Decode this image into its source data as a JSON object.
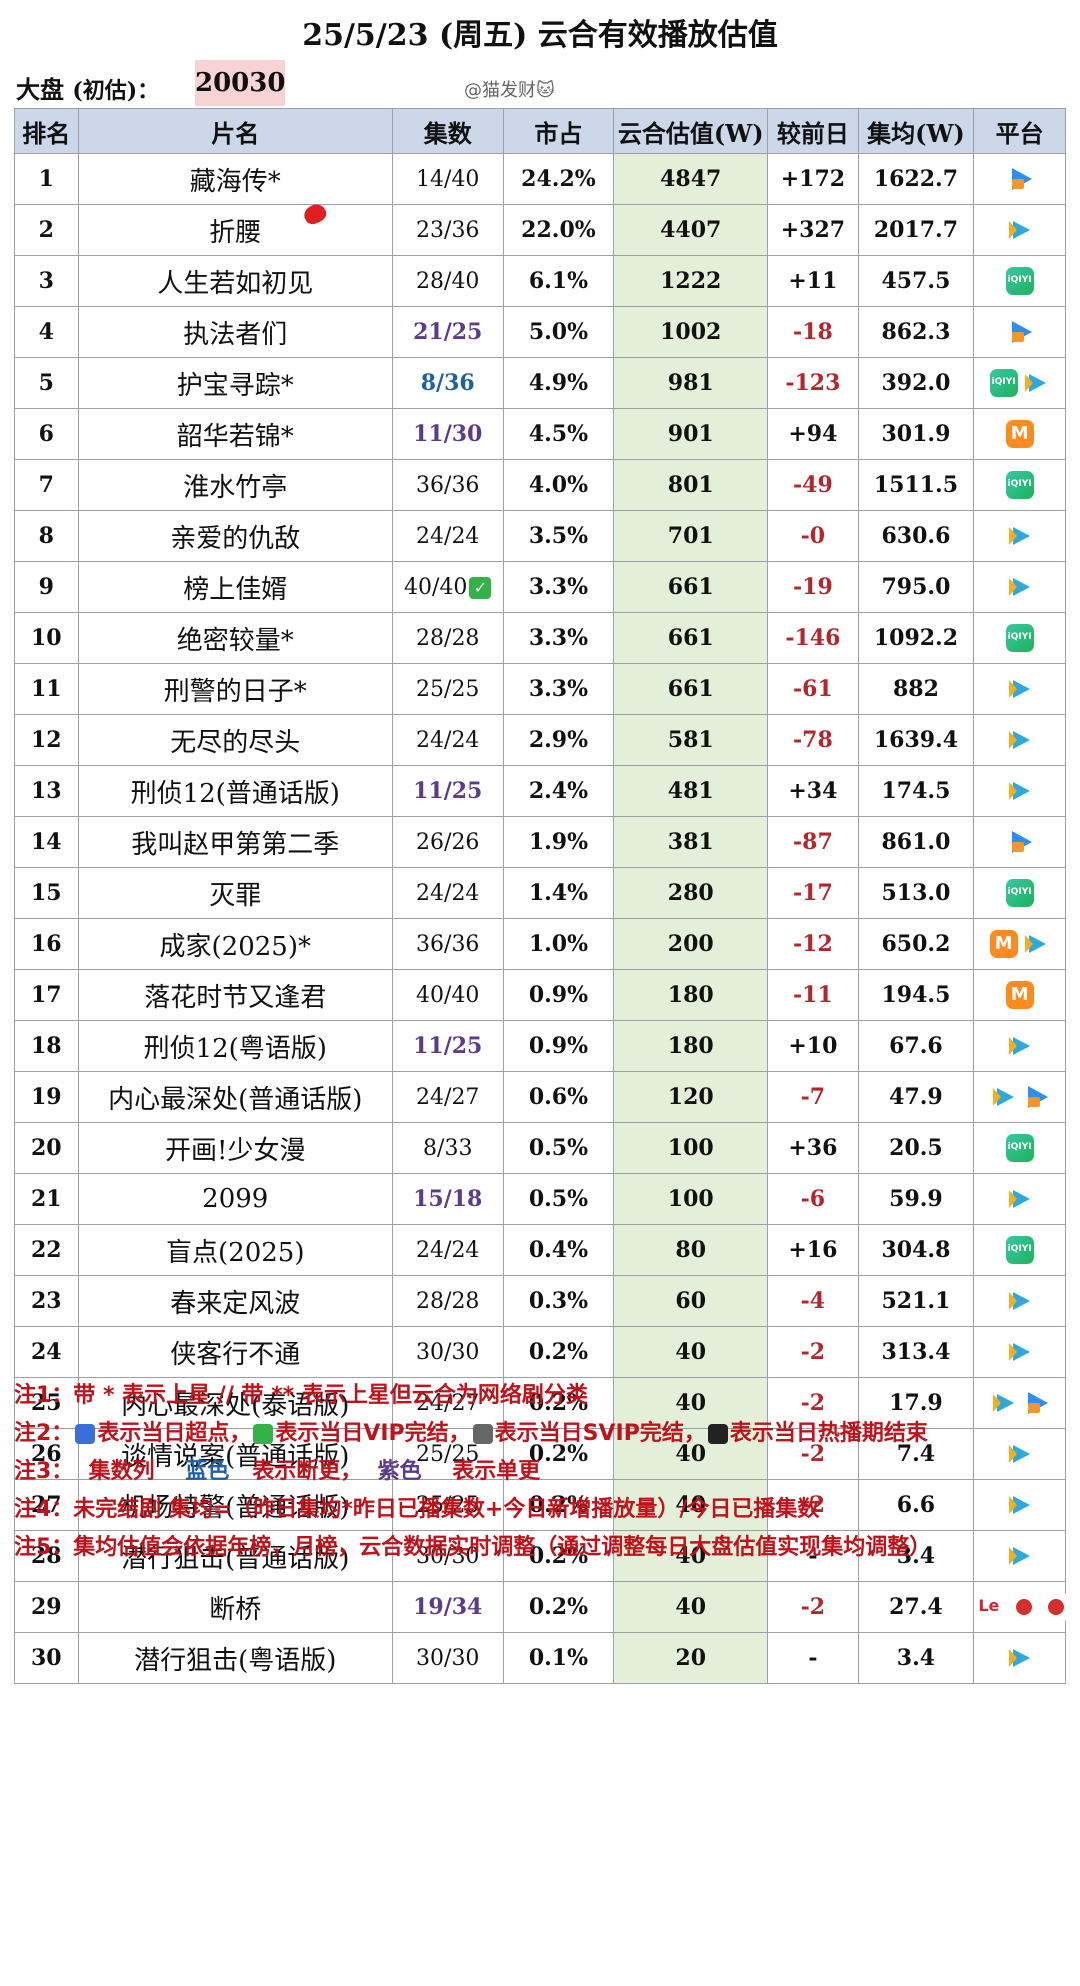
{
  "title": "25/5/23 (周五) 云合有效播放估值",
  "market": {
    "label_main": "大盘",
    "label_paren": "(初估)：",
    "value": "20030"
  },
  "watermark": "@猫发财🐱",
  "headers": [
    "排名",
    "片名",
    "集数",
    "市占",
    "云合估值(W)",
    "较前日",
    "集均(W)",
    "平台"
  ],
  "rows": [
    {
      "rank": "1",
      "name": "藏海传*",
      "eps": "14/40",
      "eps_style": "normal",
      "share": "24.2%",
      "value": "4847",
      "change": "+172",
      "avg": "1622.7",
      "platforms": [
        "youku"
      ]
    },
    {
      "rank": "2",
      "name": "折腰",
      "eps": "23/36",
      "eps_style": "normal",
      "share": "22.0%",
      "value": "4407",
      "change": "+327",
      "avg": "2017.7",
      "platforms": [
        "tencent"
      ]
    },
    {
      "rank": "3",
      "name": "人生若如初见",
      "eps": "28/40",
      "eps_style": "normal",
      "share": "6.1%",
      "value": "1222",
      "change": "+11",
      "avg": "457.5",
      "platforms": [
        "iqiyi"
      ]
    },
    {
      "rank": "4",
      "name": "执法者们",
      "eps": "21/25",
      "eps_style": "purple",
      "share": "5.0%",
      "value": "1002",
      "change": "-18",
      "avg": "862.3",
      "platforms": [
        "youku"
      ]
    },
    {
      "rank": "5",
      "name": "护宝寻踪*",
      "eps": "8/36",
      "eps_style": "blue",
      "share": "4.9%",
      "value": "981",
      "change": "-123",
      "avg": "392.0",
      "platforms": [
        "iqiyi",
        "tencent"
      ]
    },
    {
      "rank": "6",
      "name": "韶华若锦*",
      "eps": "11/30",
      "eps_style": "purple",
      "share": "4.5%",
      "value": "901",
      "change": "+94",
      "avg": "301.9",
      "platforms": [
        "mango"
      ]
    },
    {
      "rank": "7",
      "name": "淮水竹亭",
      "eps": "36/36",
      "eps_style": "normal",
      "share": "4.0%",
      "value": "801",
      "change": "-49",
      "avg": "1511.5",
      "platforms": [
        "iqiyi"
      ]
    },
    {
      "rank": "8",
      "name": "亲爱的仇敌",
      "eps": "24/24",
      "eps_style": "normal",
      "share": "3.5%",
      "value": "701",
      "change": "-0",
      "avg": "630.6",
      "platforms": [
        "tencent"
      ]
    },
    {
      "rank": "9",
      "name": "榜上佳婿",
      "eps": "40/40",
      "eps_style": "normal",
      "share": "3.3%",
      "value": "661",
      "change": "-19",
      "avg": "795.0",
      "platforms": [
        "tencent"
      ],
      "check": true
    },
    {
      "rank": "10",
      "name": "绝密较量*",
      "eps": "28/28",
      "eps_style": "normal",
      "share": "3.3%",
      "value": "661",
      "change": "-146",
      "avg": "1092.2",
      "platforms": [
        "iqiyi"
      ]
    },
    {
      "rank": "11",
      "name": "刑警的日子*",
      "eps": "25/25",
      "eps_style": "normal",
      "share": "3.3%",
      "value": "661",
      "change": "-61",
      "avg": "882",
      "platforms": [
        "tencent"
      ]
    },
    {
      "rank": "12",
      "name": "无尽的尽头",
      "eps": "24/24",
      "eps_style": "normal",
      "share": "2.9%",
      "value": "581",
      "change": "-78",
      "avg": "1639.4",
      "platforms": [
        "tencent"
      ]
    },
    {
      "rank": "13",
      "name": "刑侦12(普通话版)",
      "eps": "11/25",
      "eps_style": "purple",
      "share": "2.4%",
      "value": "481",
      "change": "+34",
      "avg": "174.5",
      "platforms": [
        "tencent"
      ]
    },
    {
      "rank": "14",
      "name": "我叫赵甲第第二季",
      "eps": "26/26",
      "eps_style": "normal",
      "share": "1.9%",
      "value": "381",
      "change": "-87",
      "avg": "861.0",
      "platforms": [
        "youku"
      ]
    },
    {
      "rank": "15",
      "name": "灭罪",
      "eps": "24/24",
      "eps_style": "normal",
      "share": "1.4%",
      "value": "280",
      "change": "-17",
      "avg": "513.0",
      "platforms": [
        "iqiyi"
      ]
    },
    {
      "rank": "16",
      "name": "成家(2025)*",
      "eps": "36/36",
      "eps_style": "normal",
      "share": "1.0%",
      "value": "200",
      "change": "-12",
      "avg": "650.2",
      "platforms": [
        "mango",
        "tencent"
      ]
    },
    {
      "rank": "17",
      "name": "落花时节又逢君",
      "eps": "40/40",
      "eps_style": "normal",
      "share": "0.9%",
      "value": "180",
      "change": "-11",
      "avg": "194.5",
      "platforms": [
        "mango"
      ]
    },
    {
      "rank": "18",
      "name": "刑侦12(粤语版)",
      "eps": "11/25",
      "eps_style": "purple",
      "share": "0.9%",
      "value": "180",
      "change": "+10",
      "avg": "67.6",
      "platforms": [
        "tencent"
      ]
    },
    {
      "rank": "19",
      "name": "内心最深处(普通话版)",
      "eps": "24/27",
      "eps_style": "normal",
      "share": "0.6%",
      "value": "120",
      "change": "-7",
      "avg": "47.9",
      "platforms": [
        "tencent",
        "youku"
      ]
    },
    {
      "rank": "20",
      "name": "开画!少女漫",
      "eps": "8/33",
      "eps_style": "normal",
      "share": "0.5%",
      "value": "100",
      "change": "+36",
      "avg": "20.5",
      "platforms": [
        "iqiyi"
      ]
    },
    {
      "rank": "21",
      "name": "2099",
      "eps": "15/18",
      "eps_style": "purple",
      "share": "0.5%",
      "value": "100",
      "change": "-6",
      "avg": "59.9",
      "platforms": [
        "tencent"
      ]
    },
    {
      "rank": "22",
      "name": "盲点(2025)",
      "eps": "24/24",
      "eps_style": "normal",
      "share": "0.4%",
      "value": "80",
      "change": "+16",
      "avg": "304.8",
      "platforms": [
        "iqiyi"
      ]
    },
    {
      "rank": "23",
      "name": "春来定风波",
      "eps": "28/28",
      "eps_style": "normal",
      "share": "0.3%",
      "value": "60",
      "change": "-4",
      "avg": "521.1",
      "platforms": [
        "tencent"
      ]
    },
    {
      "rank": "24",
      "name": "侠客行不通",
      "eps": "30/30",
      "eps_style": "normal",
      "share": "0.2%",
      "value": "40",
      "change": "-2",
      "avg": "313.4",
      "platforms": [
        "tencent"
      ]
    },
    {
      "rank": "25",
      "name": "内心最深处(泰语版)",
      "eps": "24/27",
      "eps_style": "normal",
      "share": "0.2%",
      "value": "40",
      "change": "-2",
      "avg": "17.9",
      "platforms": [
        "tencent",
        "youku"
      ]
    },
    {
      "rank": "26",
      "name": "谈情说案(普通话版)",
      "eps": "25/25",
      "eps_style": "normal",
      "share": "0.2%",
      "value": "40",
      "change": "-2",
      "avg": "7.4",
      "platforms": [
        "tencent"
      ]
    },
    {
      "rank": "27",
      "name": "机场特警(普通话版)",
      "eps": "25/25",
      "eps_style": "normal",
      "share": "0.2%",
      "value": "40",
      "change": "-2",
      "avg": "6.6",
      "platforms": [
        "tencent"
      ]
    },
    {
      "rank": "28",
      "name": "潜行狙击(普通话版)",
      "eps": "30/30",
      "eps_style": "normal",
      "share": "0.2%",
      "value": "40",
      "change": "-",
      "avg": "3.4",
      "platforms": [
        "tencent"
      ]
    },
    {
      "rank": "29",
      "name": "断桥",
      "eps": "19/34",
      "eps_style": "purple",
      "share": "0.2%",
      "value": "40",
      "change": "-2",
      "avg": "27.4",
      "platforms": [
        "le",
        "red",
        "red"
      ]
    },
    {
      "rank": "30",
      "name": "潜行狙击(粤语版)",
      "eps": "30/30",
      "eps_style": "normal",
      "share": "0.1%",
      "value": "20",
      "change": "-",
      "avg": "3.4",
      "platforms": [
        "tencent"
      ]
    }
  ],
  "notes": {
    "n1": "注1：带 * 表示上星 // 带 ** 表示上星但云合为网络剧分类",
    "n2_prefix": "注2：",
    "n2_a": "表示当日超点，",
    "n2_b": "表示当日VIP完结，",
    "n2_c": "表示当日SVIP完结，",
    "n2_d": "表示当日热播期结束",
    "n3_prefix": "注3：",
    "n3_col": "集数列",
    "n3_blue": "蓝色",
    "n3_blue_desc": "表示断更，",
    "n3_purple": "紫色",
    "n3_purple_desc": "表示单更",
    "n4": "注4：未完结剧 集均=（昨日集均*昨日已播集数+今日新增播放量）/今日已播集数",
    "n5": "注5：集均估值会依据年榜，月榜，云合数据实时调整（通过调整每日大盘估值实现集均调整）"
  },
  "colors": {
    "header_bg": "#ccd8ea",
    "value_bg": "#e3efd9",
    "negative": "#b3262b",
    "purple": "#5e3a8c",
    "blue": "#1f5fa8",
    "note_red": "#c0121a"
  }
}
